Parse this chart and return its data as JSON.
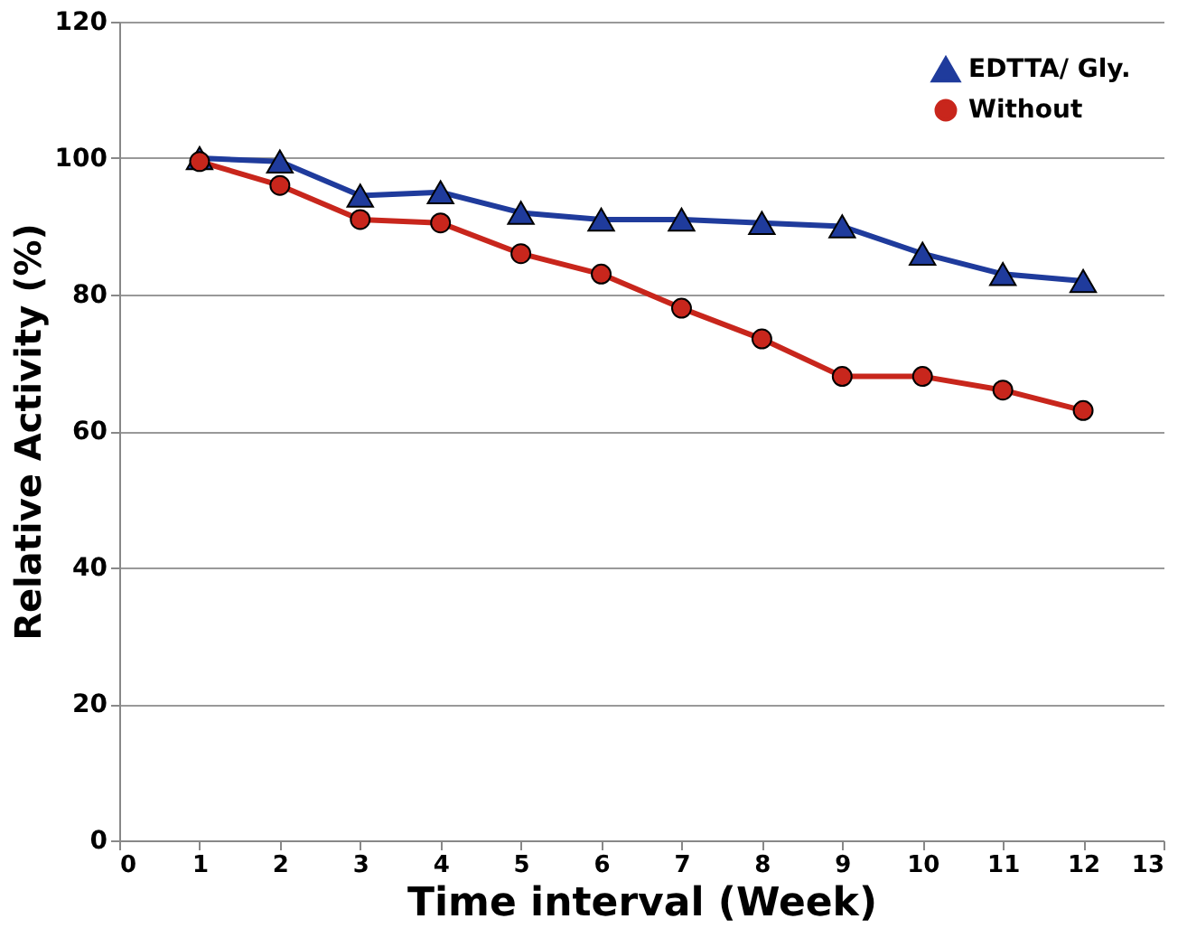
{
  "chart_data": {
    "type": "line",
    "xlabel": "Time interval (Week)",
    "ylabel": "Relative Activity (%)",
    "x": [
      1,
      2,
      3,
      4,
      5,
      6,
      7,
      8,
      9,
      10,
      11,
      12
    ],
    "series": [
      {
        "name": "EDTTA/ Gly.",
        "color": "#1f3b9c",
        "marker": "triangle",
        "values": [
          100,
          99.5,
          94.5,
          95,
          92,
          91,
          91,
          90.5,
          90,
          86,
          83,
          82
        ]
      },
      {
        "name": "Without",
        "color": "#c8261c",
        "marker": "circle",
        "values": [
          99.5,
          96,
          91,
          90.5,
          86,
          83,
          78,
          73.5,
          68,
          68,
          66,
          63
        ]
      }
    ],
    "xlim": [
      0,
      13
    ],
    "xticks": [
      0,
      1,
      2,
      3,
      4,
      5,
      6,
      7,
      8,
      9,
      10,
      11,
      12,
      13
    ],
    "ylim": [
      0,
      120
    ],
    "yticks": [
      0,
      20,
      40,
      60,
      80,
      100,
      120
    ],
    "grid": "y",
    "legend": "top right",
    "line_style": "solid"
  }
}
